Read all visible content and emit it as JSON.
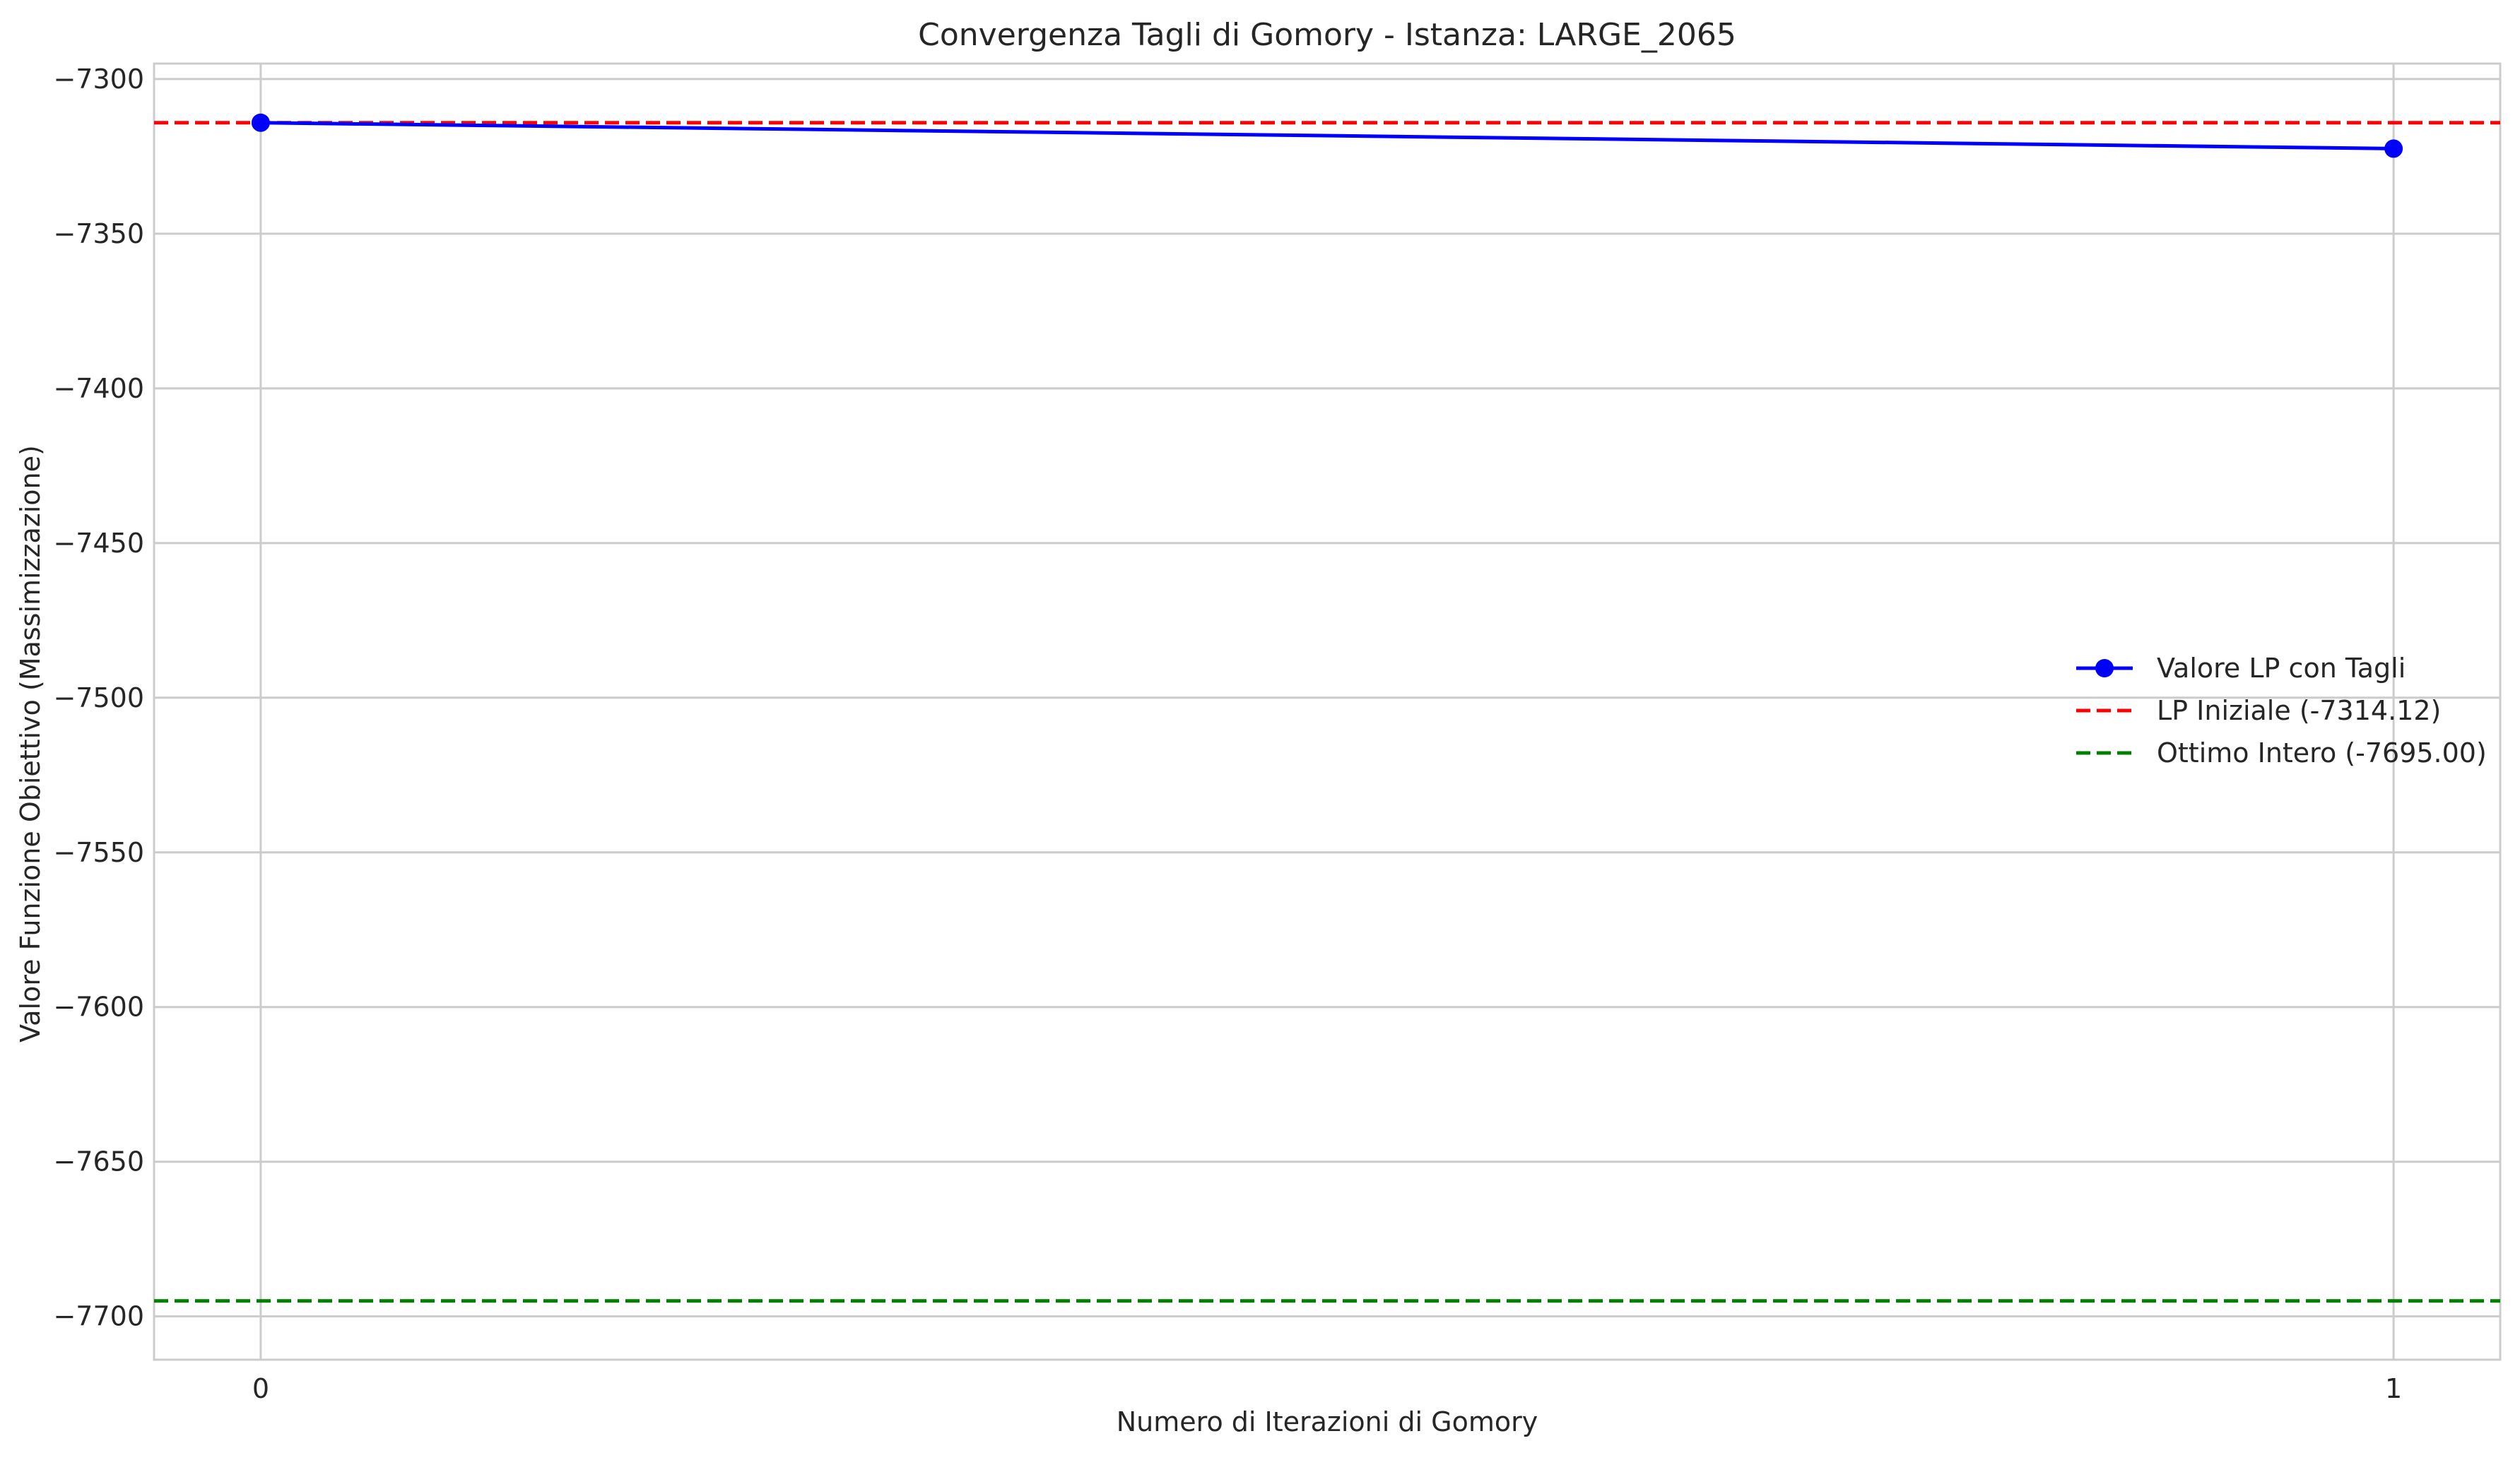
{
  "chart_data": {
    "type": "line",
    "title": "Convergenza Tagli di Gomory - Istanza: LARGE_2065",
    "xlabel": "Numero di Iterazioni di Gomory",
    "ylabel": "Valore Funzione Obiettivo (Massimizzazione)",
    "x_ticks": [
      "0",
      "1"
    ],
    "y_ticks": [
      "−7300",
      "−7350",
      "−7400",
      "−7450",
      "−7500",
      "−7550",
      "−7600",
      "−7650",
      "−7700"
    ],
    "x_tick_values": [
      0,
      1
    ],
    "y_tick_values": [
      -7300,
      -7350,
      -7400,
      -7450,
      -7500,
      -7550,
      -7600,
      -7650,
      -7700
    ],
    "xlim": [
      -0.05,
      1.05
    ],
    "ylim": [
      -7714,
      -7295
    ],
    "grid": true,
    "legend_position": "center-right",
    "series": [
      {
        "name": "Valore LP con Tagli",
        "kind": "line-marker",
        "color": "#0000ff",
        "x": [
          0,
          1
        ],
        "y": [
          -7314.12,
          -7322.5
        ]
      }
    ],
    "reference_lines": [
      {
        "name": "LP Iniziale (-7314.12)",
        "value": -7314.12,
        "color": "#ff0000",
        "style": "dashed"
      },
      {
        "name": "Ottimo Intero (-7695.00)",
        "value": -7695.0,
        "color": "#008000",
        "style": "dashed"
      }
    ],
    "colors": {
      "grid": "#cccccc",
      "frame": "#cccccc",
      "text": "#262626"
    }
  }
}
